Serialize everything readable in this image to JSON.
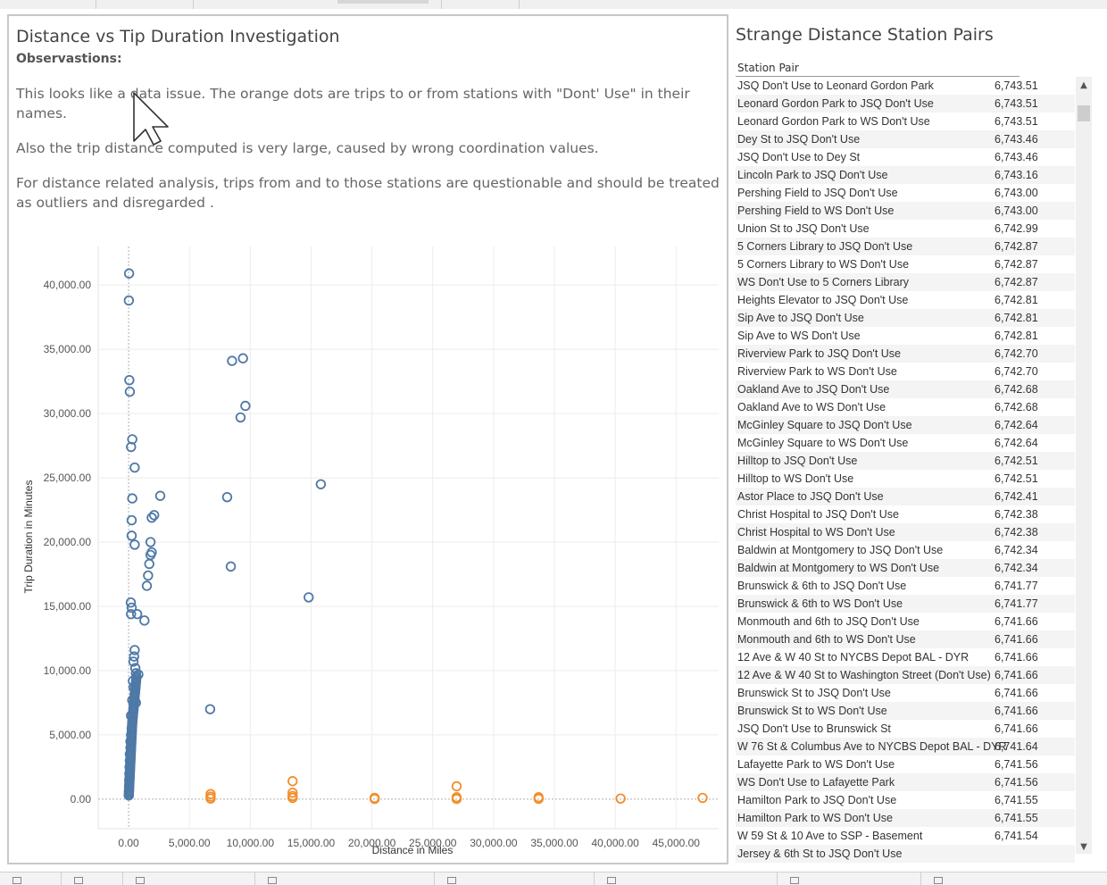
{
  "dashboard": {
    "left_title": "Distance vs Tip Duration Investigation",
    "observations_heading": "Observastions:",
    "observations": [
      "This looks like a data issue. The orange dots are trips to or from stations with \"Dont' Use\" in their names.",
      "Also the trip distance computed is very large, caused by wrong coordination values.",
      "For distance related analysis, trips from and to those stations are questionable and should be treated as outliers and disregarded ."
    ],
    "right_title": "Strange Distance Station Pairs",
    "table_header": "Station Pair"
  },
  "colors": {
    "normal": "#4e79a7",
    "dont_use": "#f28e2b"
  },
  "icons": {
    "scroll_up": "chevron-up-icon",
    "scroll_down": "chevron-down-icon",
    "cursor": "mouse-pointer-icon"
  },
  "chart_data": {
    "type": "scatter",
    "xlabel": "Distance in Miles",
    "ylabel": "Trip Duration in Minutes",
    "xlim": [
      -2500,
      48500
    ],
    "ylim": [
      -2300,
      43000
    ],
    "xticks": [
      0,
      5000,
      10000,
      15000,
      20000,
      25000,
      30000,
      35000,
      40000,
      45000
    ],
    "yticks": [
      0,
      5000,
      10000,
      15000,
      20000,
      25000,
      30000,
      35000,
      40000
    ],
    "x_tick_labels": [
      "0.00",
      "5,000.00",
      "10,000.00",
      "15,000.00",
      "20,000.00",
      "25,000.00",
      "30,000.00",
      "35,000.00",
      "40,000.00",
      "45,000.00"
    ],
    "y_tick_labels": [
      "0.00",
      "5,000.00",
      "10,000.00",
      "15,000.00",
      "20,000.00",
      "25,000.00",
      "30,000.00",
      "35,000.00",
      "40,000.00"
    ],
    "grid": true,
    "series": [
      {
        "color": "#4e79a7",
        "points": [
          [
            40,
            40900
          ],
          [
            20,
            38800
          ],
          [
            60,
            32600
          ],
          [
            100,
            31700
          ],
          [
            300,
            28000
          ],
          [
            200,
            27400
          ],
          [
            500,
            25800
          ],
          [
            300,
            23400
          ],
          [
            250,
            21700
          ],
          [
            250,
            20500
          ],
          [
            500,
            19800
          ],
          [
            2600,
            23600
          ],
          [
            2100,
            22100
          ],
          [
            1900,
            21900
          ],
          [
            1800,
            20000
          ],
          [
            1900,
            19200
          ],
          [
            1800,
            19000
          ],
          [
            1700,
            18300
          ],
          [
            1600,
            17400
          ],
          [
            1500,
            16600
          ],
          [
            180,
            15300
          ],
          [
            250,
            14900
          ],
          [
            200,
            14400
          ],
          [
            700,
            14400
          ],
          [
            1300,
            13900
          ],
          [
            500,
            11600
          ],
          [
            450,
            11100
          ],
          [
            400,
            10700
          ],
          [
            550,
            10200
          ],
          [
            600,
            9800
          ],
          [
            800,
            9700
          ],
          [
            350,
            9200
          ],
          [
            400,
            8700
          ],
          [
            500,
            8200
          ],
          [
            300,
            7700
          ],
          [
            600,
            7500
          ],
          [
            400,
            7000
          ],
          [
            200,
            6500
          ],
          [
            300,
            6000
          ],
          [
            250,
            5500
          ],
          [
            200,
            5000
          ],
          [
            150,
            4500
          ],
          [
            150,
            4000
          ],
          [
            100,
            3500
          ],
          [
            100,
            3000
          ],
          [
            80,
            2500
          ],
          [
            60,
            2000
          ],
          [
            50,
            1500
          ],
          [
            40,
            1000
          ],
          [
            30,
            600
          ],
          [
            20,
            300
          ],
          [
            8500,
            34100
          ],
          [
            9400,
            34300
          ],
          [
            9600,
            30600
          ],
          [
            9200,
            29700
          ],
          [
            8100,
            23500
          ],
          [
            8400,
            18100
          ],
          [
            15800,
            24500
          ],
          [
            14800,
            15700
          ],
          [
            6700,
            7000
          ]
        ]
      },
      {
        "color": "#f28e2b",
        "points": [
          [
            6740,
            400
          ],
          [
            6740,
            200
          ],
          [
            6740,
            50
          ],
          [
            13480,
            1400
          ],
          [
            13480,
            500
          ],
          [
            13480,
            250
          ],
          [
            13480,
            100
          ],
          [
            20220,
            100
          ],
          [
            20220,
            20
          ],
          [
            26960,
            1000
          ],
          [
            26960,
            150
          ],
          [
            26960,
            20
          ],
          [
            33700,
            150
          ],
          [
            33700,
            30
          ],
          [
            40440,
            50
          ],
          [
            47180,
            100
          ]
        ]
      }
    ]
  },
  "table_rows": [
    {
      "pair": "JSQ Don't Use to Leonard Gordon Park",
      "value": "6,743.51"
    },
    {
      "pair": "Leonard Gordon Park to JSQ Don't Use",
      "value": "6,743.51"
    },
    {
      "pair": "Leonard Gordon Park to WS Don't Use",
      "value": "6,743.51"
    },
    {
      "pair": "Dey St to JSQ Don't Use",
      "value": "6,743.46"
    },
    {
      "pair": "JSQ Don't Use to Dey St",
      "value": "6,743.46"
    },
    {
      "pair": "Lincoln Park to JSQ Don't Use",
      "value": "6,743.16"
    },
    {
      "pair": "Pershing Field to JSQ Don't Use",
      "value": "6,743.00"
    },
    {
      "pair": "Pershing Field to WS Don't Use",
      "value": "6,743.00"
    },
    {
      "pair": "Union St to JSQ Don't Use",
      "value": "6,742.99"
    },
    {
      "pair": "5 Corners Library to JSQ Don't Use",
      "value": "6,742.87"
    },
    {
      "pair": "5 Corners Library to WS Don't Use",
      "value": "6,742.87"
    },
    {
      "pair": "WS Don't Use to 5 Corners Library",
      "value": "6,742.87"
    },
    {
      "pair": "Heights Elevator to JSQ Don't Use",
      "value": "6,742.81"
    },
    {
      "pair": "Sip Ave to JSQ Don't Use",
      "value": "6,742.81"
    },
    {
      "pair": "Sip Ave to WS Don't Use",
      "value": "6,742.81"
    },
    {
      "pair": "Riverview Park to JSQ Don't Use",
      "value": "6,742.70"
    },
    {
      "pair": "Riverview Park to WS Don't Use",
      "value": "6,742.70"
    },
    {
      "pair": "Oakland Ave to JSQ Don't Use",
      "value": "6,742.68"
    },
    {
      "pair": "Oakland Ave to WS Don't Use",
      "value": "6,742.68"
    },
    {
      "pair": "McGinley Square to JSQ Don't Use",
      "value": "6,742.64"
    },
    {
      "pair": "McGinley Square to WS Don't Use",
      "value": "6,742.64"
    },
    {
      "pair": "Hilltop to JSQ Don't Use",
      "value": "6,742.51"
    },
    {
      "pair": "Hilltop to WS Don't Use",
      "value": "6,742.51"
    },
    {
      "pair": "Astor Place to JSQ Don't Use",
      "value": "6,742.41"
    },
    {
      "pair": "Christ Hospital to JSQ Don't Use",
      "value": "6,742.38"
    },
    {
      "pair": "Christ Hospital to WS Don't Use",
      "value": "6,742.38"
    },
    {
      "pair": "Baldwin at Montgomery to JSQ Don't Use",
      "value": "6,742.34"
    },
    {
      "pair": "Baldwin at Montgomery to WS Don't Use",
      "value": "6,742.34"
    },
    {
      "pair": "Brunswick & 6th to JSQ Don't Use",
      "value": "6,741.77"
    },
    {
      "pair": "Brunswick & 6th to WS Don't Use",
      "value": "6,741.77"
    },
    {
      "pair": "Monmouth and 6th to JSQ Don't Use",
      "value": "6,741.66"
    },
    {
      "pair": "Monmouth and 6th to WS Don't Use",
      "value": "6,741.66"
    },
    {
      "pair": "12 Ave & W 40 St to NYCBS Depot BAL - DYR",
      "value": "6,741.66"
    },
    {
      "pair": "12 Ave & W 40 St to Washington Street (Don't Use)",
      "value": "6,741.66"
    },
    {
      "pair": "Brunswick St to JSQ Don't Use",
      "value": "6,741.66"
    },
    {
      "pair": "Brunswick St to WS Don't Use",
      "value": "6,741.66"
    },
    {
      "pair": "JSQ Don't Use to Brunswick St",
      "value": "6,741.66"
    },
    {
      "pair": "W 76 St & Columbus Ave to NYCBS Depot BAL - DYR",
      "value": "6,741.64"
    },
    {
      "pair": "Lafayette Park to WS Don't Use",
      "value": "6,741.56"
    },
    {
      "pair": "WS Don't Use to Lafayette Park",
      "value": "6,741.56"
    },
    {
      "pair": "Hamilton Park to JSQ Don't Use",
      "value": "6,741.55"
    },
    {
      "pair": "Hamilton Park to WS Don't Use",
      "value": "6,741.55"
    },
    {
      "pair": "W 59 St & 10 Ave to SSP - Basement",
      "value": "6,741.54"
    },
    {
      "pair": "Jersey & 6th St to JSQ Don't Use",
      "value": ""
    }
  ]
}
